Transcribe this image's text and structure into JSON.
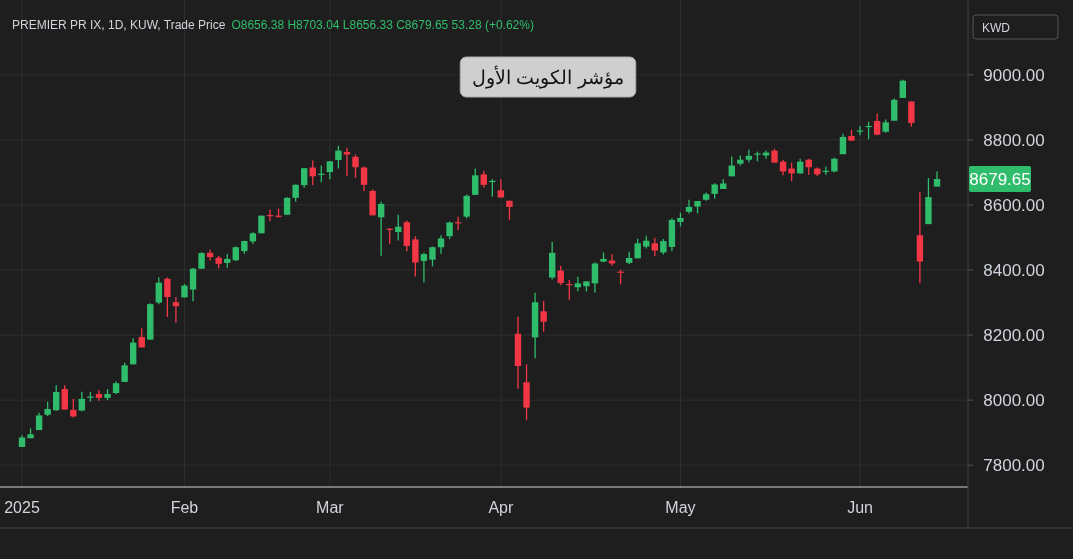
{
  "chart_data": {
    "type": "candlestick",
    "title": "PREMIER PR IX, 1D, KUW, Trade Price",
    "subtitle": "O8656.38 H8703.04 L8656.33 C8679.65 53.28 (+0.62%)",
    "ylabel": "KWD",
    "annotations": [
      "مؤشر الكويت الأول",
      "8679.65"
    ],
    "categories": [
      "2025",
      null,
      null,
      null,
      null,
      null,
      null,
      null,
      null,
      null,
      null,
      null,
      null,
      null,
      null,
      null,
      null,
      null,
      null,
      "Feb",
      null,
      null,
      null,
      null,
      null,
      null,
      null,
      null,
      null,
      null,
      null,
      null,
      null,
      null,
      null,
      null,
      "Mar",
      null,
      null,
      null,
      null,
      null,
      null,
      null,
      null,
      null,
      null,
      null,
      null,
      null,
      null,
      null,
      null,
      null,
      null,
      null,
      "Apr",
      null,
      null,
      null,
      null,
      null,
      null,
      null,
      null,
      null,
      null,
      null,
      null,
      null,
      null,
      null,
      null,
      null,
      null,
      null,
      null,
      "May",
      null,
      null,
      null,
      null,
      null,
      null,
      null,
      null,
      null,
      null,
      null,
      null,
      null,
      null,
      null,
      null,
      null,
      null,
      null,
      null,
      "Jun",
      null,
      null,
      null,
      null,
      null,
      null,
      null,
      null,
      null
    ],
    "ohlc": [
      [
        7856,
        7892,
        7856,
        7885
      ],
      [
        7883,
        7913,
        7883,
        7895
      ],
      [
        7908,
        7961,
        7908,
        7953
      ],
      [
        7955,
        7995,
        7951,
        7973
      ],
      [
        7969,
        8046,
        7967,
        8025
      ],
      [
        8034,
        8046,
        7971,
        7971
      ],
      [
        7970,
        8004,
        7947,
        7950
      ],
      [
        7968,
        8026,
        7966,
        8004
      ],
      [
        8008,
        8025,
        7995,
        8011
      ],
      [
        8019,
        8031,
        7998,
        8007
      ],
      [
        8007,
        8034,
        8000,
        8019
      ],
      [
        8022,
        8057,
        8019,
        8052
      ],
      [
        8056,
        8115,
        8056,
        8107
      ],
      [
        8110,
        8190,
        8110,
        8177
      ],
      [
        8194,
        8221,
        8162,
        8162
      ],
      [
        8186,
        8298,
        8186,
        8295
      ],
      [
        8300,
        8377,
        8295,
        8361
      ],
      [
        8373,
        8377,
        8256,
        8317
      ],
      [
        8301,
        8317,
        8238,
        8289
      ],
      [
        8316,
        8357,
        8316,
        8352
      ],
      [
        8340,
        8406,
        8304,
        8404
      ],
      [
        8404,
        8455,
        8404,
        8452
      ],
      [
        8453,
        8462,
        8429,
        8440
      ],
      [
        8438,
        8444,
        8405,
        8419
      ],
      [
        8422,
        8449,
        8407,
        8434
      ],
      [
        8430,
        8472,
        8428,
        8470
      ],
      [
        8458,
        8490,
        8450,
        8489
      ],
      [
        8488,
        8516,
        8480,
        8513
      ],
      [
        8513,
        8567,
        8513,
        8567
      ],
      [
        8569,
        8586,
        8550,
        8566
      ],
      [
        8567,
        8589,
        8561,
        8564
      ],
      [
        8570,
        8624,
        8570,
        8622
      ],
      [
        8622,
        8663,
        8610,
        8662
      ],
      [
        8661,
        8713,
        8654,
        8713
      ],
      [
        8715,
        8737,
        8661,
        8688
      ],
      [
        8693,
        8721,
        8670,
        8696
      ],
      [
        8701,
        8734,
        8679,
        8734
      ],
      [
        8738,
        8782,
        8712,
        8767
      ],
      [
        8763,
        8776,
        8689,
        8755
      ],
      [
        8748,
        8755,
        8683,
        8716
      ],
      [
        8715,
        8718,
        8643,
        8662
      ],
      [
        8643,
        8648,
        8568,
        8568
      ],
      [
        8562,
        8610,
        8444,
        8603
      ],
      [
        8527,
        8529,
        8480,
        8524
      ],
      [
        8517,
        8570,
        8491,
        8533
      ],
      [
        8547,
        8552,
        8458,
        8474
      ],
      [
        8494,
        8504,
        8380,
        8423
      ],
      [
        8428,
        8453,
        8362,
        8449
      ],
      [
        8432,
        8472,
        8411,
        8470
      ],
      [
        8470,
        8507,
        8450,
        8497
      ],
      [
        8504,
        8549,
        8495,
        8546
      ],
      [
        8547,
        8564,
        8522,
        8544
      ],
      [
        8564,
        8632,
        8559,
        8628
      ],
      [
        8631,
        8712,
        8631,
        8691
      ],
      [
        8694,
        8706,
        8654,
        8662
      ],
      [
        8671,
        8679,
        8625,
        8674
      ],
      [
        8645,
        8679,
        8623,
        8623
      ],
      [
        8613,
        8613,
        8554,
        8594
      ],
      [
        8204,
        8256,
        8035,
        8105
      ],
      [
        8055,
        8110,
        7938,
        7977
      ],
      [
        8193,
        8330,
        8129,
        8301
      ],
      [
        8273,
        8305,
        8210,
        8241
      ],
      [
        8377,
        8487,
        8371,
        8453
      ],
      [
        8398,
        8413,
        8353,
        8360
      ],
      [
        8357,
        8370,
        8308,
        8354
      ],
      [
        8347,
        8379,
        8335,
        8359
      ],
      [
        8350,
        8365,
        8334,
        8365
      ],
      [
        8359,
        8423,
        8331,
        8420
      ],
      [
        8426,
        8454,
        8424,
        8434
      ],
      [
        8429,
        8449,
        8413,
        8420
      ],
      [
        8395,
        8401,
        8356,
        8393
      ],
      [
        8422,
        8456,
        8418,
        8437
      ],
      [
        8436,
        8496,
        8436,
        8482
      ],
      [
        8472,
        8505,
        8466,
        8490
      ],
      [
        8482,
        8499,
        8442,
        8460
      ],
      [
        8454,
        8495,
        8448,
        8489
      ],
      [
        8471,
        8559,
        8458,
        8554
      ],
      [
        8548,
        8576,
        8534,
        8560
      ],
      [
        8579,
        8616,
        8574,
        8594
      ],
      [
        8595,
        8612,
        8574,
        8612
      ],
      [
        8616,
        8638,
        8613,
        8633
      ],
      [
        8634,
        8667,
        8619,
        8663
      ],
      [
        8649,
        8679,
        8649,
        8666
      ],
      [
        8688,
        8749,
        8688,
        8721
      ],
      [
        8727,
        8752,
        8721,
        8739
      ],
      [
        8739,
        8770,
        8731,
        8751
      ],
      [
        8756,
        8764,
        8734,
        8758
      ],
      [
        8752,
        8767,
        8742,
        8761
      ],
      [
        8767,
        8773,
        8730,
        8730
      ],
      [
        8733,
        8739,
        8691,
        8703
      ],
      [
        8712,
        8730,
        8673,
        8697
      ],
      [
        8697,
        8742,
        8697,
        8733
      ],
      [
        8739,
        8742,
        8693,
        8716
      ],
      [
        8712,
        8715,
        8688,
        8694
      ],
      [
        8703,
        8718,
        8693,
        8705
      ],
      [
        8703,
        8745,
        8700,
        8742
      ],
      [
        8756,
        8819,
        8756,
        8809
      ],
      [
        8812,
        8831,
        8796,
        8798
      ],
      [
        8827,
        8843,
        8814,
        8829
      ],
      [
        8840,
        8856,
        8802,
        8843
      ],
      [
        8858,
        8881,
        8814,
        8816
      ],
      [
        8825,
        8863,
        8822,
        8854
      ],
      [
        8859,
        8927,
        8859,
        8923
      ],
      [
        8929,
        8985,
        8929,
        8982
      ],
      [
        8918,
        8918,
        8840,
        8852
      ],
      [
        8507,
        8640,
        8359,
        8426
      ],
      [
        8541,
        8683,
        8541,
        8624
      ],
      [
        8656.38,
        8703.04,
        8656.33,
        8679.65
      ]
    ],
    "colors": [
      "#2fbd6c",
      "#2fbd6c",
      "#2fbd6c",
      "#2fbd6c",
      "#2fbd6c",
      "#f23645",
      "#f23645",
      "#2fbd6c",
      "#2fbd6c",
      "#f23645",
      "#2fbd6c",
      "#2fbd6c",
      "#2fbd6c",
      "#2fbd6c",
      "#f23645",
      "#2fbd6c",
      "#2fbd6c",
      "#f23645",
      "#f23645",
      "#2fbd6c",
      "#2fbd6c",
      "#2fbd6c",
      "#f23645",
      "#f23645",
      "#2fbd6c",
      "#2fbd6c",
      "#2fbd6c",
      "#2fbd6c",
      "#2fbd6c",
      "#f23645",
      "#f23645",
      "#2fbd6c",
      "#2fbd6c",
      "#2fbd6c",
      "#f23645",
      "#2fbd6c",
      "#2fbd6c",
      "#2fbd6c",
      "#f23645",
      "#f23645",
      "#f23645",
      "#f23645",
      "#2fbd6c",
      "#f23645",
      "#2fbd6c",
      "#f23645",
      "#f23645",
      "#2fbd6c",
      "#2fbd6c",
      "#2fbd6c",
      "#2fbd6c",
      "#f23645",
      "#2fbd6c",
      "#2fbd6c",
      "#f23645",
      "#2fbd6c",
      "#f23645",
      "#f23645",
      "#f23645",
      "#f23645",
      "#2fbd6c",
      "#f23645",
      "#2fbd6c",
      "#f23645",
      "#f23645",
      "#2fbd6c",
      "#2fbd6c",
      "#2fbd6c",
      "#2fbd6c",
      "#f23645",
      "#f23645",
      "#2fbd6c",
      "#2fbd6c",
      "#2fbd6c",
      "#f23645",
      "#2fbd6c",
      "#2fbd6c",
      "#2fbd6c",
      "#2fbd6c",
      "#2fbd6c",
      "#2fbd6c",
      "#2fbd6c",
      "#2fbd6c",
      "#2fbd6c",
      "#2fbd6c",
      "#2fbd6c",
      "#2fbd6c",
      "#2fbd6c",
      "#f23645",
      "#f23645",
      "#f23645",
      "#2fbd6c",
      "#f23645",
      "#f23645",
      "#2fbd6c",
      "#2fbd6c",
      "#2fbd6c",
      "#f23645",
      "#2fbd6c",
      "#2fbd6c",
      "#f23645",
      "#2fbd6c",
      "#2fbd6c",
      "#2fbd6c",
      "#f23645",
      "#f23645",
      "#2fbd6c",
      "#2fbd6c"
    ],
    "ylim": [
      7733,
      9230
    ],
    "yticks": [
      {
        "value": 7800,
        "label": "7800.00"
      },
      {
        "value": 8000,
        "label": "8000.00"
      },
      {
        "value": 8200,
        "label": "8200.00"
      },
      {
        "value": 8400,
        "label": "8400.00"
      },
      {
        "value": 8600,
        "label": "8600.00"
      },
      {
        "value": 8800,
        "label": "8800.00"
      },
      {
        "value": 9000,
        "label": "9000.00"
      }
    ],
    "grid": true
  }
}
